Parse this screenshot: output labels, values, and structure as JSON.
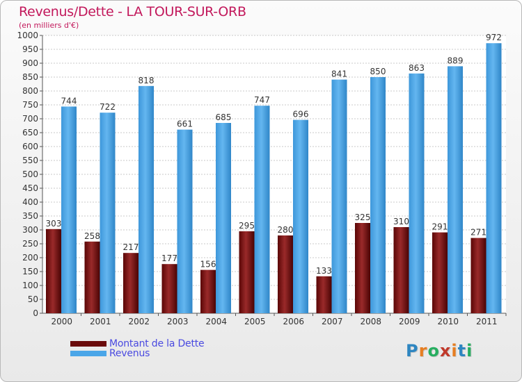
{
  "title": "Revenus/Dette - LA TOUR-SUR-ORB",
  "subtitle": "(en milliers d'€)",
  "legend": {
    "debt_label": "Montant de la Dette",
    "revenue_label": "Revenus"
  },
  "logo": {
    "text": "Proxiti",
    "letter_colors": [
      "#2e86c1",
      "#e67e22",
      "#27ae60",
      "#c0392b",
      "#e67e22",
      "#2e86c1",
      "#27ae60"
    ]
  },
  "colors": {
    "debt": "#7a0e0e",
    "revenue": "#4aa6e8",
    "title": "#c2185b",
    "legend_text": "#4a4ae0"
  },
  "chart_data": {
    "type": "bar",
    "title": "Revenus/Dette - LA TOUR-SUR-ORB",
    "subtitle": "(en milliers d'€)",
    "categories": [
      "2000",
      "2001",
      "2002",
      "2003",
      "2004",
      "2005",
      "2006",
      "2007",
      "2008",
      "2009",
      "2010",
      "2011"
    ],
    "series": [
      {
        "name": "Montant de la Dette",
        "values": [
          303,
          258,
          217,
          177,
          156,
          295,
          280,
          133,
          325,
          310,
          291,
          271
        ]
      },
      {
        "name": "Revenus",
        "values": [
          744,
          722,
          818,
          661,
          685,
          747,
          696,
          841,
          850,
          863,
          889,
          972
        ]
      }
    ],
    "ylim": [
      0,
      1000
    ],
    "y_ticks": [
      0,
      50,
      100,
      150,
      200,
      250,
      300,
      350,
      400,
      450,
      500,
      550,
      600,
      650,
      700,
      750,
      800,
      850,
      900,
      950,
      1000
    ],
    "grid": true,
    "legend_position": "bottom-left"
  }
}
